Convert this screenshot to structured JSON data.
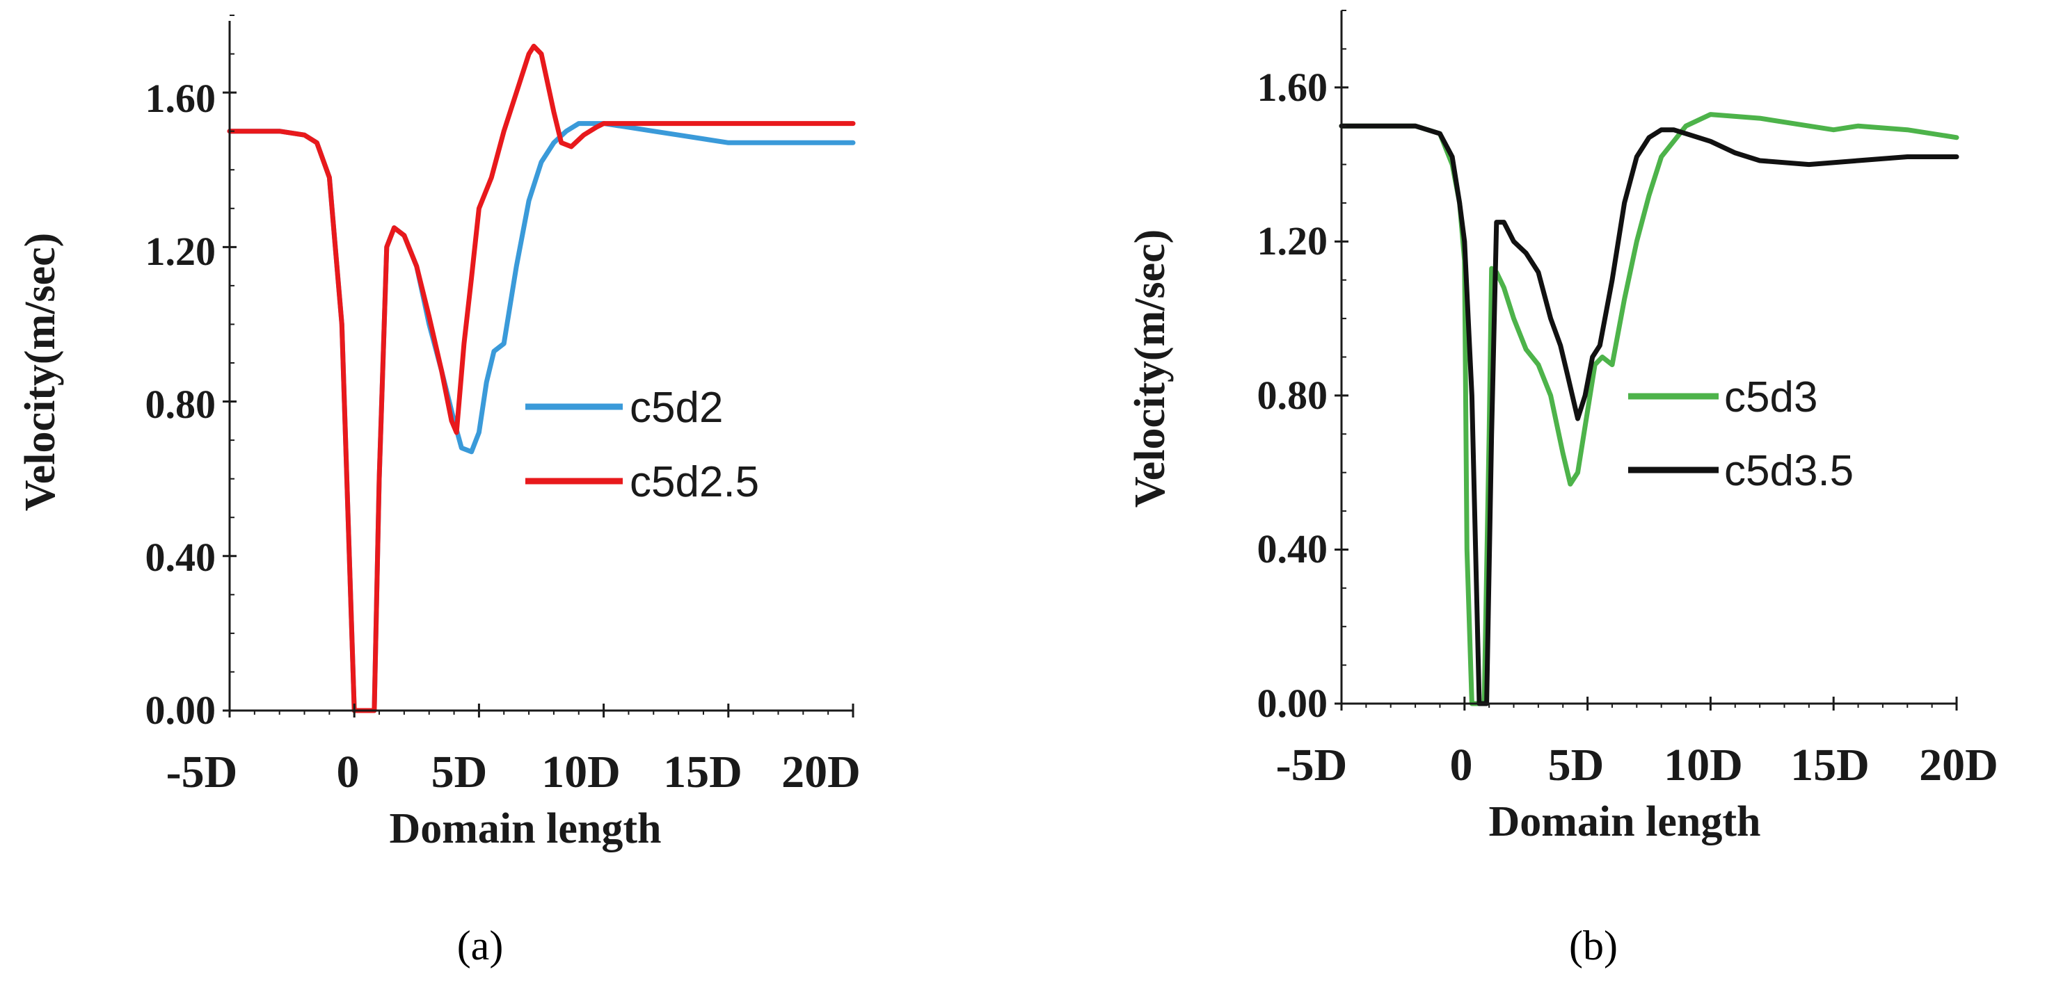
{
  "chart_data": [
    {
      "type": "line",
      "panel_label": "(a)",
      "xlabel": "Domain length",
      "ylabel": "Velocity(m/sec)",
      "x_tick_labels": [
        "-5D",
        "0",
        "5D",
        "10D",
        "15D",
        "20D"
      ],
      "x_tick_values": [
        -5,
        0,
        5,
        10,
        15,
        20
      ],
      "y_tick_labels": [
        "0.00",
        "0.40",
        "0.80",
        "1.20",
        "1.60"
      ],
      "y_tick_values": [
        0,
        0.4,
        0.8,
        1.2,
        1.6
      ],
      "xlim": [
        -5,
        20
      ],
      "ylim": [
        0,
        1.8
      ],
      "legend_position": "center-right",
      "series": [
        {
          "name": "c5d2",
          "color": "#3a9ad9",
          "x": [
            -5,
            -3,
            -2,
            -1.5,
            -1,
            -0.5,
            0,
            0.3,
            0.5,
            0.8,
            1.0,
            1.3,
            1.6,
            2,
            2.5,
            3,
            3.5,
            4,
            4.3,
            4.7,
            5,
            5.3,
            5.6,
            6,
            6.5,
            7,
            7.5,
            8,
            8.5,
            9,
            9.5,
            10,
            11,
            12,
            13,
            15,
            18,
            20
          ],
          "y": [
            1.5,
            1.5,
            1.49,
            1.47,
            1.38,
            1.0,
            0.0,
            0.0,
            0.0,
            0.0,
            0.6,
            1.2,
            1.25,
            1.23,
            1.15,
            1.0,
            0.88,
            0.75,
            0.68,
            0.67,
            0.72,
            0.85,
            0.93,
            0.95,
            1.15,
            1.32,
            1.42,
            1.47,
            1.5,
            1.52,
            1.52,
            1.52,
            1.51,
            1.5,
            1.49,
            1.47,
            1.47,
            1.47
          ]
        },
        {
          "name": "c5d2.5",
          "color": "#e8191c",
          "x": [
            -5,
            -3,
            -2,
            -1.5,
            -1,
            -0.5,
            0,
            0.3,
            0.5,
            0.8,
            1.0,
            1.3,
            1.6,
            2,
            2.5,
            3,
            3.5,
            3.9,
            4.1,
            4.4,
            4.7,
            5,
            5.5,
            6,
            6.5,
            7,
            7.2,
            7.5,
            8,
            8.3,
            8.7,
            9.2,
            9.7,
            10,
            11,
            13,
            15,
            18,
            20
          ],
          "y": [
            1.5,
            1.5,
            1.49,
            1.47,
            1.38,
            1.0,
            0.0,
            0.0,
            0.0,
            0.0,
            0.6,
            1.2,
            1.25,
            1.23,
            1.15,
            1.02,
            0.88,
            0.75,
            0.72,
            0.95,
            1.12,
            1.3,
            1.38,
            1.5,
            1.6,
            1.7,
            1.72,
            1.7,
            1.55,
            1.47,
            1.46,
            1.49,
            1.51,
            1.52,
            1.52,
            1.52,
            1.52,
            1.52,
            1.52
          ]
        }
      ]
    },
    {
      "type": "line",
      "panel_label": "(b)",
      "xlabel": "Domain length",
      "ylabel": "Velocity(m/sec)",
      "x_tick_labels": [
        "-5D",
        "0",
        "5D",
        "10D",
        "15D",
        "20D"
      ],
      "x_tick_values": [
        -5,
        0,
        5,
        10,
        15,
        20
      ],
      "y_tick_labels": [
        "0.00",
        "0.40",
        "0.80",
        "1.20",
        "1.60"
      ],
      "y_tick_values": [
        0,
        0.4,
        0.8,
        1.2,
        1.6
      ],
      "xlim": [
        -5,
        20
      ],
      "ylim": [
        0,
        1.8
      ],
      "legend_position": "center-right",
      "series": [
        {
          "name": "c5d3",
          "color": "#4db34a",
          "x": [
            -5,
            -2,
            -1,
            -0.5,
            -0.2,
            0,
            0.1,
            0.3,
            0.5,
            0.8,
            1.0,
            1.1,
            1.3,
            1.6,
            2,
            2.5,
            3,
            3.5,
            4,
            4.3,
            4.6,
            4.9,
            5.3,
            5.6,
            6,
            6.5,
            7,
            7.5,
            8,
            9,
            10,
            12,
            14,
            15,
            16,
            18,
            20
          ],
          "y": [
            1.5,
            1.5,
            1.48,
            1.4,
            1.3,
            1.15,
            0.4,
            0.0,
            0.0,
            0.0,
            0.7,
            1.13,
            1.12,
            1.08,
            1.0,
            0.92,
            0.88,
            0.8,
            0.65,
            0.57,
            0.6,
            0.72,
            0.88,
            0.9,
            0.88,
            1.05,
            1.2,
            1.32,
            1.42,
            1.5,
            1.53,
            1.52,
            1.5,
            1.49,
            1.5,
            1.49,
            1.47
          ]
        },
        {
          "name": "c5d3.5",
          "color": "#111111",
          "x": [
            -5,
            -2,
            -1,
            -0.5,
            -0.2,
            0,
            0.3,
            0.6,
            0.9,
            1.1,
            1.3,
            1.6,
            2,
            2.5,
            3,
            3.5,
            3.9,
            4.2,
            4.6,
            4.9,
            5.2,
            5.5,
            6,
            6.5,
            7,
            7.5,
            8,
            8.5,
            9,
            10,
            11,
            12,
            14,
            16,
            18,
            20
          ],
          "y": [
            1.5,
            1.5,
            1.48,
            1.42,
            1.3,
            1.2,
            0.8,
            0.0,
            0.0,
            0.7,
            1.25,
            1.25,
            1.2,
            1.17,
            1.12,
            1.0,
            0.93,
            0.85,
            0.74,
            0.8,
            0.9,
            0.93,
            1.1,
            1.3,
            1.42,
            1.47,
            1.49,
            1.49,
            1.48,
            1.46,
            1.43,
            1.41,
            1.4,
            1.41,
            1.42,
            1.42
          ]
        }
      ]
    }
  ]
}
